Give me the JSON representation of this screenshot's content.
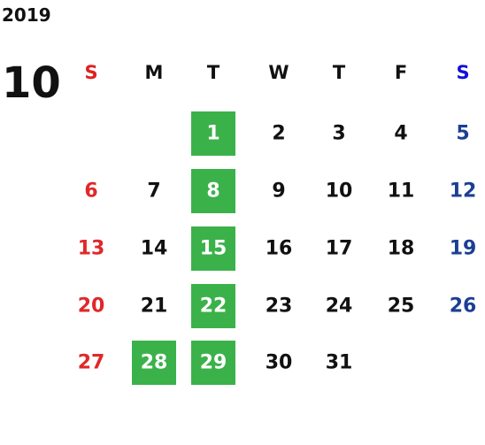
{
  "year": "2019",
  "month": "10",
  "weekdays": [
    "S",
    "M",
    "T",
    "W",
    "T",
    "F",
    "S"
  ],
  "weeks": [
    [
      null,
      null,
      {
        "text": "1",
        "highlight": true
      },
      {
        "text": "2",
        "highlight": false
      },
      {
        "text": "3",
        "highlight": false
      },
      {
        "text": "4",
        "highlight": false
      },
      {
        "text": "5",
        "highlight": false
      }
    ],
    [
      {
        "text": "6",
        "highlight": false
      },
      {
        "text": "7",
        "highlight": false
      },
      {
        "text": "8",
        "highlight": true
      },
      {
        "text": "9",
        "highlight": false
      },
      {
        "text": "10",
        "highlight": false
      },
      {
        "text": "11",
        "highlight": false
      },
      {
        "text": "12",
        "highlight": false
      }
    ],
    [
      {
        "text": "13",
        "highlight": false
      },
      {
        "text": "14",
        "highlight": false
      },
      {
        "text": "15",
        "highlight": true
      },
      {
        "text": "16",
        "highlight": false
      },
      {
        "text": "17",
        "highlight": false
      },
      {
        "text": "18",
        "highlight": false
      },
      {
        "text": "19",
        "highlight": false
      }
    ],
    [
      {
        "text": "20",
        "highlight": false
      },
      {
        "text": "21",
        "highlight": false
      },
      {
        "text": "22",
        "highlight": true
      },
      {
        "text": "23",
        "highlight": false
      },
      {
        "text": "24",
        "highlight": false
      },
      {
        "text": "25",
        "highlight": false
      },
      {
        "text": "26",
        "highlight": false
      }
    ],
    [
      {
        "text": "27",
        "highlight": false
      },
      {
        "text": "28",
        "highlight": true
      },
      {
        "text": "29",
        "highlight": true
      },
      {
        "text": "30",
        "highlight": false
      },
      {
        "text": "31",
        "highlight": false
      },
      null,
      null
    ]
  ]
}
